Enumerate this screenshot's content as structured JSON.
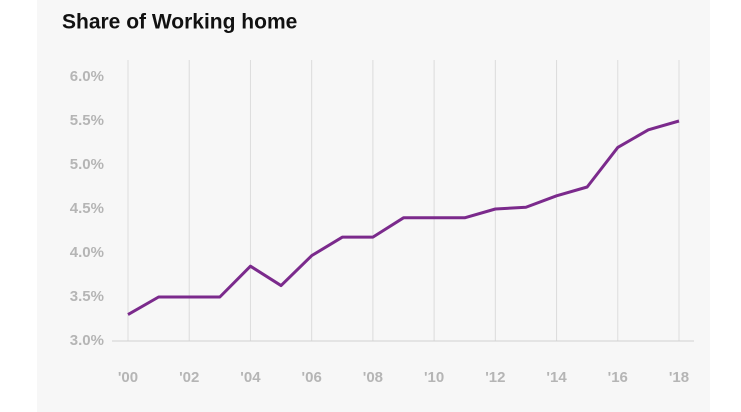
{
  "chart_data": {
    "type": "line",
    "title": "Share of Working home",
    "x": [
      2000,
      2001,
      2002,
      2003,
      2004,
      2005,
      2006,
      2007,
      2008,
      2009,
      2010,
      2011,
      2012,
      2013,
      2014,
      2015,
      2016,
      2017,
      2018
    ],
    "series": [
      {
        "name": "Share of Working home",
        "color": "#7b2a8c",
        "values": [
          3.3,
          3.5,
          3.5,
          3.5,
          3.85,
          3.63,
          3.97,
          4.18,
          4.18,
          4.4,
          4.4,
          4.4,
          4.5,
          4.52,
          4.65,
          4.75,
          5.2,
          5.4,
          5.5
        ]
      }
    ],
    "xlim": [
      2000,
      2018
    ],
    "xticks": [
      {
        "value": 2000,
        "label": "'00"
      },
      {
        "value": 2002,
        "label": "'02"
      },
      {
        "value": 2004,
        "label": "'04"
      },
      {
        "value": 2006,
        "label": "'06"
      },
      {
        "value": 2008,
        "label": "'08"
      },
      {
        "value": 2010,
        "label": "'10"
      },
      {
        "value": 2012,
        "label": "'12"
      },
      {
        "value": 2014,
        "label": "'14"
      },
      {
        "value": 2016,
        "label": "'16"
      },
      {
        "value": 2018,
        "label": "'18"
      }
    ],
    "ylim": [
      3,
      6
    ],
    "yticks": [
      {
        "value": 3,
        "label": "3.0%"
      },
      {
        "value": 3.5,
        "label": "3.5%"
      },
      {
        "value": 4,
        "label": "4.0%"
      },
      {
        "value": 4.5,
        "label": "4.5%"
      },
      {
        "value": 5,
        "label": "5.0%"
      },
      {
        "value": 5.5,
        "label": "5.5%"
      },
      {
        "value": 6,
        "label": "6.0%"
      }
    ],
    "grid": "x"
  }
}
